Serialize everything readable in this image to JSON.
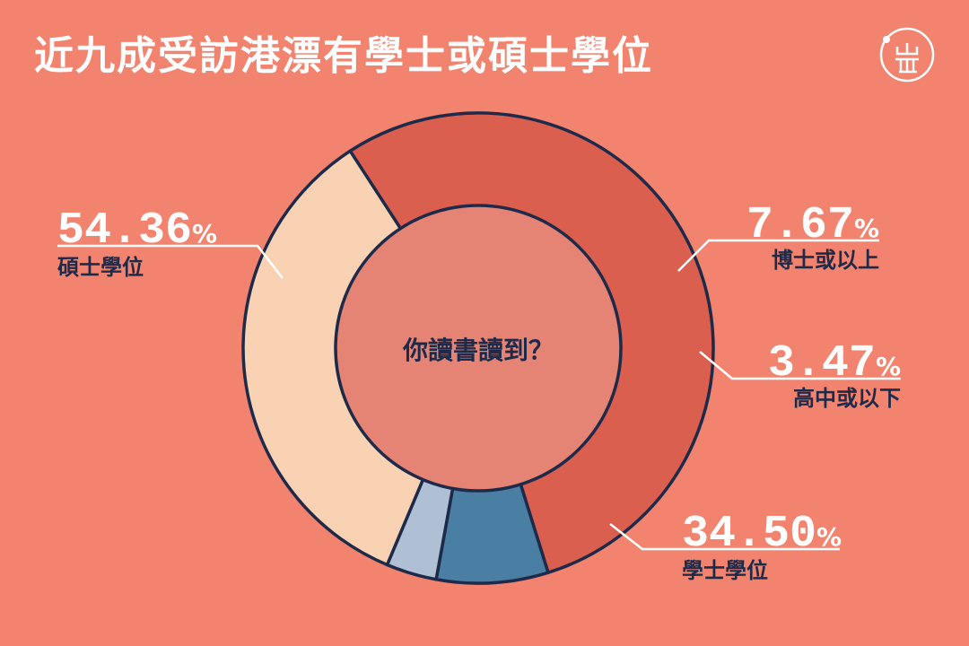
{
  "title": "近九成受訪港漂有學士或碩士學位",
  "logo": {
    "icon": "initium-logo-icon",
    "text": "端"
  },
  "chart_data": {
    "type": "pie",
    "style": "donut",
    "center_label": "你讀書讀到？",
    "percent_sign": "%",
    "slices": [
      {
        "label": "碩士學位",
        "value": 54.36,
        "value_text": "54.36",
        "color": "#DB5F4F"
      },
      {
        "label": "博士或以上",
        "value": 7.67,
        "value_text": "7.67",
        "color": "#4A7FA3"
      },
      {
        "label": "高中或以下",
        "value": 3.47,
        "value_text": "3.47",
        "color": "#AFC0D5"
      },
      {
        "label": "學士學位",
        "value": 34.5,
        "value_text": "34.50",
        "color": "#F9D2B4"
      }
    ],
    "inner_color": "#E58474",
    "outline_color": "#1E2A4A",
    "background": "#F1836F"
  }
}
